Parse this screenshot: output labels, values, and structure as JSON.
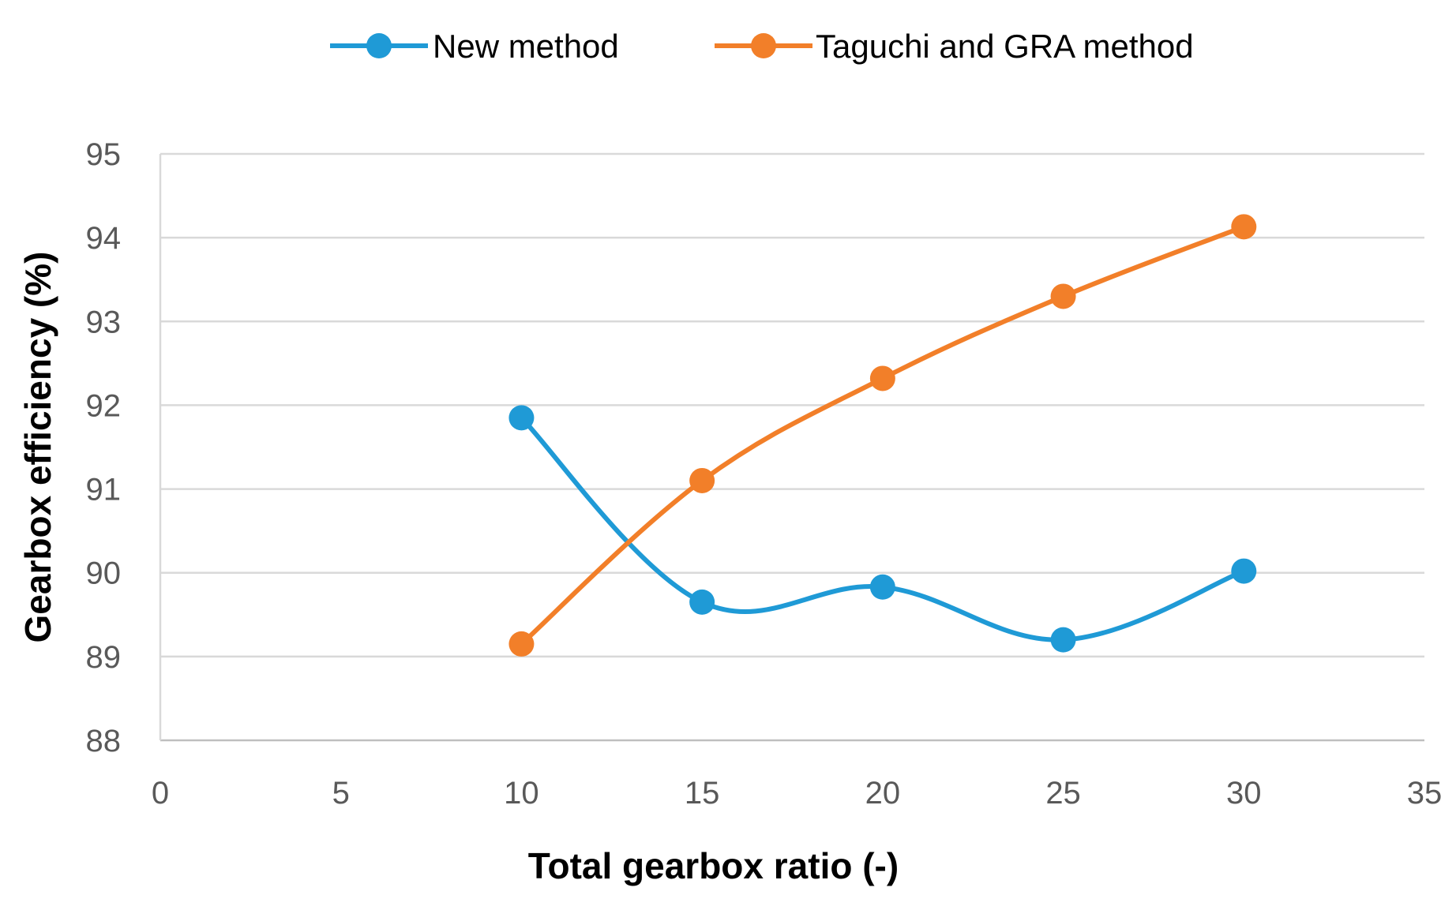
{
  "chart_data": {
    "type": "line",
    "title": "",
    "xlabel": "Total gearbox ratio (-)",
    "ylabel": "Gearbox efficiency (%)",
    "xlim": [
      0,
      35
    ],
    "ylim": [
      88,
      95
    ],
    "xticks": [
      0,
      5,
      10,
      15,
      20,
      25,
      30,
      35
    ],
    "yticks": [
      88,
      89,
      90,
      91,
      92,
      93,
      94,
      95
    ],
    "grid": "horizontal",
    "legend_position": "top",
    "series": [
      {
        "name": "New method",
        "color": "#1f9ad6",
        "x": [
          10,
          15,
          20,
          25,
          30
        ],
        "y": [
          91.85,
          89.65,
          89.83,
          89.2,
          90.02
        ]
      },
      {
        "name": "Taguchi and GRA method",
        "color": "#f27f29",
        "x": [
          10,
          15,
          20,
          25,
          30
        ],
        "y": [
          89.15,
          91.1,
          92.32,
          93.3,
          94.13
        ]
      }
    ]
  }
}
